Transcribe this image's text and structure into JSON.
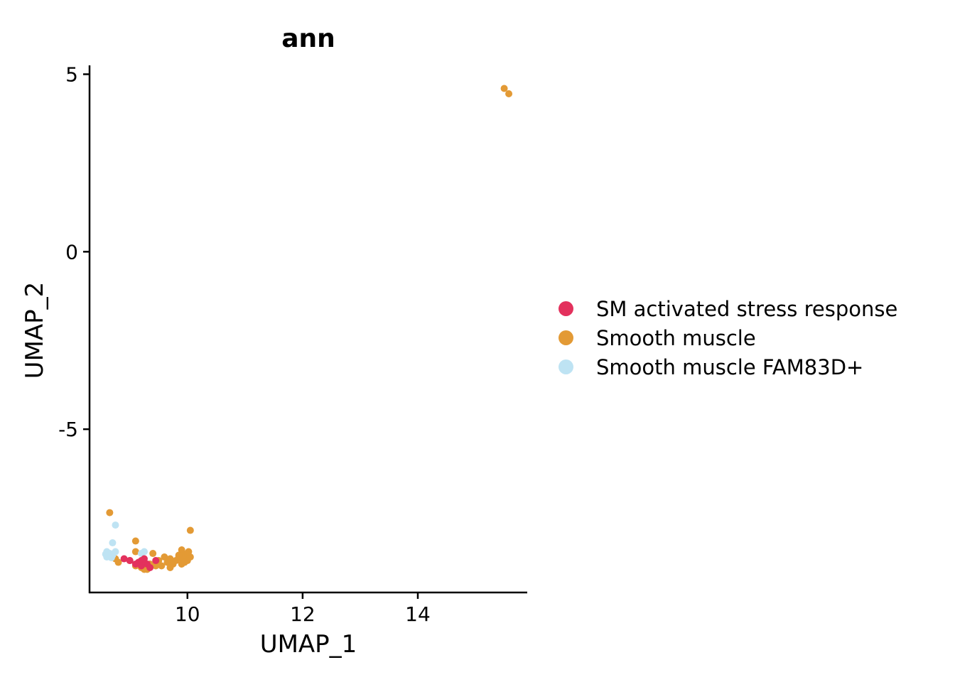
{
  "chart_data": {
    "type": "scatter",
    "title": "ann",
    "xlabel": "UMAP_1",
    "ylabel": "UMAP_2",
    "xlim": [
      8.3,
      15.9
    ],
    "ylim": [
      -9.6,
      5.25
    ],
    "xticks": [
      10,
      12,
      14
    ],
    "yticks": [
      5,
      0,
      -5
    ],
    "ytick_labels": [
      "5",
      "0",
      "-5"
    ],
    "xtick_labels": [
      "10",
      "12",
      "14"
    ],
    "grid": false,
    "legend_position": "right",
    "series": [
      {
        "name": "SM activated stress response",
        "color": "#E3315D",
        "points": [
          [
            8.9,
            -8.65
          ],
          [
            9.0,
            -8.7
          ],
          [
            9.15,
            -8.75
          ],
          [
            9.2,
            -8.7
          ],
          [
            9.25,
            -8.65
          ],
          [
            9.3,
            -8.8
          ],
          [
            9.2,
            -8.85
          ],
          [
            9.35,
            -8.9
          ],
          [
            9.45,
            -8.7
          ],
          [
            9.1,
            -8.8
          ]
        ]
      },
      {
        "name": "Smooth muscle",
        "color": "#E39A35",
        "points": [
          [
            15.5,
            4.6
          ],
          [
            15.58,
            4.45
          ],
          [
            8.65,
            -7.35
          ],
          [
            10.05,
            -7.85
          ],
          [
            9.1,
            -8.15
          ],
          [
            9.1,
            -8.45
          ],
          [
            9.4,
            -8.5
          ],
          [
            9.9,
            -8.4
          ],
          [
            8.8,
            -8.75
          ],
          [
            8.75,
            -8.65
          ],
          [
            9.0,
            -8.7
          ],
          [
            9.1,
            -8.85
          ],
          [
            9.2,
            -8.9
          ],
          [
            9.3,
            -8.95
          ],
          [
            9.45,
            -8.85
          ],
          [
            9.5,
            -8.7
          ],
          [
            9.6,
            -8.6
          ],
          [
            9.65,
            -8.75
          ],
          [
            9.7,
            -8.65
          ],
          [
            9.75,
            -8.8
          ],
          [
            9.8,
            -8.7
          ],
          [
            9.85,
            -8.6
          ],
          [
            9.9,
            -8.65
          ],
          [
            9.95,
            -8.55
          ],
          [
            10.0,
            -8.5
          ],
          [
            10.05,
            -8.6
          ],
          [
            10.0,
            -8.7
          ],
          [
            9.95,
            -8.75
          ],
          [
            9.9,
            -8.8
          ],
          [
            9.55,
            -8.85
          ],
          [
            9.35,
            -8.8
          ],
          [
            9.25,
            -8.95
          ],
          [
            9.7,
            -8.9
          ],
          [
            10.02,
            -8.45
          ],
          [
            9.85,
            -8.55
          ]
        ]
      },
      {
        "name": "Smooth muscle FAM83D+",
        "color": "#BEE3F3",
        "points": [
          [
            8.75,
            -7.7
          ],
          [
            8.7,
            -8.2
          ],
          [
            8.6,
            -8.45
          ],
          [
            8.65,
            -8.5
          ],
          [
            8.7,
            -8.55
          ],
          [
            8.6,
            -8.6
          ],
          [
            8.65,
            -8.55
          ],
          [
            8.75,
            -8.45
          ],
          [
            8.68,
            -8.62
          ],
          [
            9.25,
            -8.45
          ],
          [
            9.2,
            -8.5
          ],
          [
            8.58,
            -8.52
          ]
        ]
      }
    ]
  },
  "legend": {
    "items": [
      {
        "label": "SM activated stress response",
        "color": "#E3315D"
      },
      {
        "label": "Smooth muscle",
        "color": "#E39A35"
      },
      {
        "label": "Smooth muscle FAM83D+",
        "color": "#BEE3F3"
      }
    ]
  }
}
